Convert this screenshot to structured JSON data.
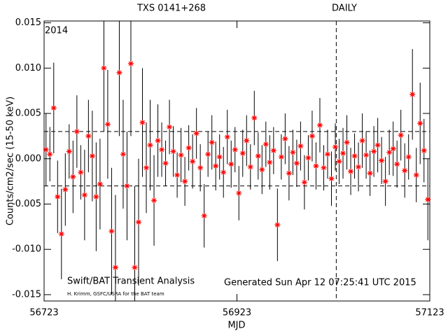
{
  "chart_data": {
    "type": "scatter",
    "title": "TXS 0141+268",
    "subtitle": "DAILY",
    "year_label": "2014",
    "credit": "Swift/BAT Transient Analysis",
    "credit_small": "H. Krimm, GSFC/USRA for the BAT team",
    "generated": "Generated Sun Apr 12 07:25:41 UTC 2015",
    "x_label": "MJD",
    "y_label": "Counts/cm2/sec (15-50 keV)",
    "xlim": [
      56723,
      57123
    ],
    "xticks": [
      56723,
      56923,
      57123
    ],
    "ylim": [
      -0.0157,
      0.0152
    ],
    "yticks": [
      {
        "value": -0.015,
        "label": "-0.015"
      },
      {
        "value": -0.01,
        "label": "-0.010"
      },
      {
        "value": -0.005,
        "label": "-0.005"
      },
      {
        "value": 0,
        "label": "0.000"
      },
      {
        "value": 0.005,
        "label": "0.005"
      },
      {
        "value": 0.01,
        "label": "0.010"
      },
      {
        "value": 0.015,
        "label": "0.015"
      }
    ],
    "reference_y": [
      -0.003,
      0.003
    ],
    "reference_x": [
      57026
    ],
    "marker_color": "#ff0000",
    "error_color": "#000000",
    "x": [
      56725,
      56729,
      56733,
      56737,
      56741,
      56745,
      56749,
      56753,
      56757,
      56761,
      56765,
      56769,
      56773,
      56777,
      56781,
      56785,
      56789,
      56793,
      56797,
      56801,
      56805,
      56809,
      56813,
      56817,
      56821,
      56825,
      56829,
      56833,
      56837,
      56841,
      56845,
      56849,
      56853,
      56857,
      56861,
      56865,
      56869,
      56873,
      56877,
      56881,
      56885,
      56889,
      56893,
      56897,
      56901,
      56905,
      56909,
      56913,
      56917,
      56921,
      56925,
      56929,
      56933,
      56937,
      56941,
      56945,
      56949,
      56953,
      56957,
      56961,
      56965,
      56969,
      56973,
      56977,
      56981,
      56985,
      56989,
      56993,
      56997,
      57001,
      57005,
      57009,
      57013,
      57017,
      57021,
      57025,
      57029,
      57033,
      57037,
      57041,
      57045,
      57049,
      57053,
      57057,
      57061,
      57065,
      57069,
      57073,
      57077,
      57081,
      57085,
      57089,
      57093,
      57097,
      57101,
      57105,
      57109,
      57113,
      57117,
      57121
    ],
    "values": [
      0.001,
      0.0005,
      0.0056,
      -0.0042,
      -0.0083,
      -0.0034,
      0.0008,
      -0.002,
      0.003,
      -0.0015,
      -0.004,
      0.0025,
      0.0003,
      -0.0042,
      -0.0028,
      0.01,
      0.0038,
      -0.008,
      -0.012,
      0.0095,
      0.0005,
      -0.003,
      0.0105,
      -0.012,
      -0.007,
      0.004,
      -0.001,
      0.0015,
      -0.0046,
      0.002,
      0.001,
      -0.0005,
      0.0035,
      0.0008,
      -0.0018,
      0.0004,
      -0.0025,
      0.0012,
      -0.0003,
      0.0028,
      -0.001,
      -0.0063,
      0.0005,
      0.0018,
      -0.0008,
      0.0002,
      -0.0015,
      0.0024,
      -0.0006,
      0.001,
      -0.0038,
      0.0006,
      0.002,
      -0.0009,
      0.0045,
      0.0003,
      -0.0012,
      0.0016,
      -0.0004,
      0.0009,
      -0.0073,
      0.0002,
      0.0022,
      -0.0016,
      0.0007,
      -0.0005,
      0.0014,
      -0.0026,
      0.0001,
      0.0025,
      -0.0008,
      0.0037,
      -0.001,
      0.0005,
      -0.0022,
      0.0013,
      -0.0003,
      0.0006,
      0.0018,
      -0.0014,
      0.0003,
      -0.0009,
      0.002,
      0.0004,
      -0.0016,
      0.0008,
      0.0015,
      -0.0002,
      -0.0025,
      0.0007,
      0.0011,
      -0.0006,
      0.0026,
      -0.0013,
      0.0002,
      0.0071,
      -0.0018,
      0.0039,
      0.0009,
      -0.0045
    ],
    "errors": [
      0.004,
      0.003,
      0.005,
      0.004,
      0.005,
      0.004,
      0.003,
      0.004,
      0.004,
      0.003,
      0.005,
      0.004,
      0.005,
      0.006,
      0.005,
      0.007,
      0.006,
      0.007,
      0.008,
      0.007,
      0.006,
      0.006,
      0.008,
      0.009,
      0.007,
      0.006,
      0.005,
      0.005,
      0.005,
      0.004,
      0.003,
      0.0025,
      0.003,
      0.0028,
      0.0025,
      0.003,
      0.0027,
      0.0025,
      0.003,
      0.0028,
      0.0026,
      0.0035,
      0.0025,
      0.003,
      0.0027,
      0.0025,
      0.0028,
      0.003,
      0.0026,
      0.0025,
      0.003,
      0.0026,
      0.0028,
      0.0025,
      0.003,
      0.0026,
      0.0027,
      0.0025,
      0.003,
      0.0026,
      0.004,
      0.0025,
      0.0028,
      0.003,
      0.0025,
      0.0026,
      0.0027,
      0.003,
      0.0025,
      0.0028,
      0.0026,
      0.003,
      0.0025,
      0.0027,
      0.003,
      0.0026,
      0.0025,
      0.0028,
      0.003,
      0.0026,
      0.0025,
      0.0027,
      0.003,
      0.0026,
      0.0025,
      0.0028,
      0.003,
      0.0026,
      0.0027,
      0.0025,
      0.003,
      0.0026,
      0.0028,
      0.003,
      0.0025,
      0.005,
      0.003,
      0.0045,
      0.0035,
      0.0045
    ]
  }
}
